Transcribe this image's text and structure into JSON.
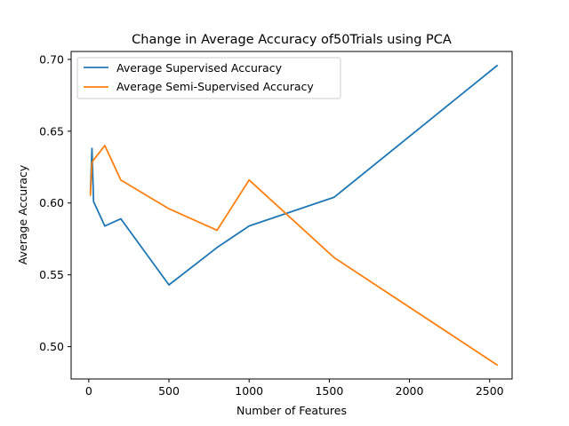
{
  "chart_data": {
    "type": "line",
    "title": "Change in Average Accuracy of50Trials using PCA",
    "xlabel": "Number of Features",
    "ylabel": "Average Accuracy",
    "xlim": [
      -110,
      2640
    ],
    "ylim": [
      0.4775,
      0.7055
    ],
    "x_ticks": [
      0,
      500,
      1000,
      1500,
      2000,
      2500
    ],
    "x_tick_labels": [
      "0",
      "500",
      "1000",
      "1500",
      "2000",
      "2500"
    ],
    "y_ticks": [
      0.5,
      0.55,
      0.6,
      0.65,
      0.7
    ],
    "y_tick_labels": [
      "0.50",
      "0.55",
      "0.60",
      "0.65",
      "0.70"
    ],
    "grid": false,
    "legend_position": "top-left",
    "series": [
      {
        "name": "Average Supervised Accuracy",
        "color": "#1f77b4",
        "x": [
          10,
          20,
          30,
          100,
          200,
          500,
          800,
          1000,
          1530,
          2550
        ],
        "y": [
          0.607,
          0.638,
          0.601,
          0.584,
          0.589,
          0.543,
          0.569,
          0.584,
          0.604,
          0.696
        ]
      },
      {
        "name": "Average Semi-Supervised Accuracy",
        "color": "#ff7f0e",
        "x": [
          10,
          20,
          30,
          100,
          200,
          500,
          800,
          1000,
          1530,
          2550
        ],
        "y": [
          0.605,
          0.628,
          0.63,
          0.64,
          0.616,
          0.596,
          0.581,
          0.616,
          0.562,
          0.487
        ]
      }
    ]
  }
}
